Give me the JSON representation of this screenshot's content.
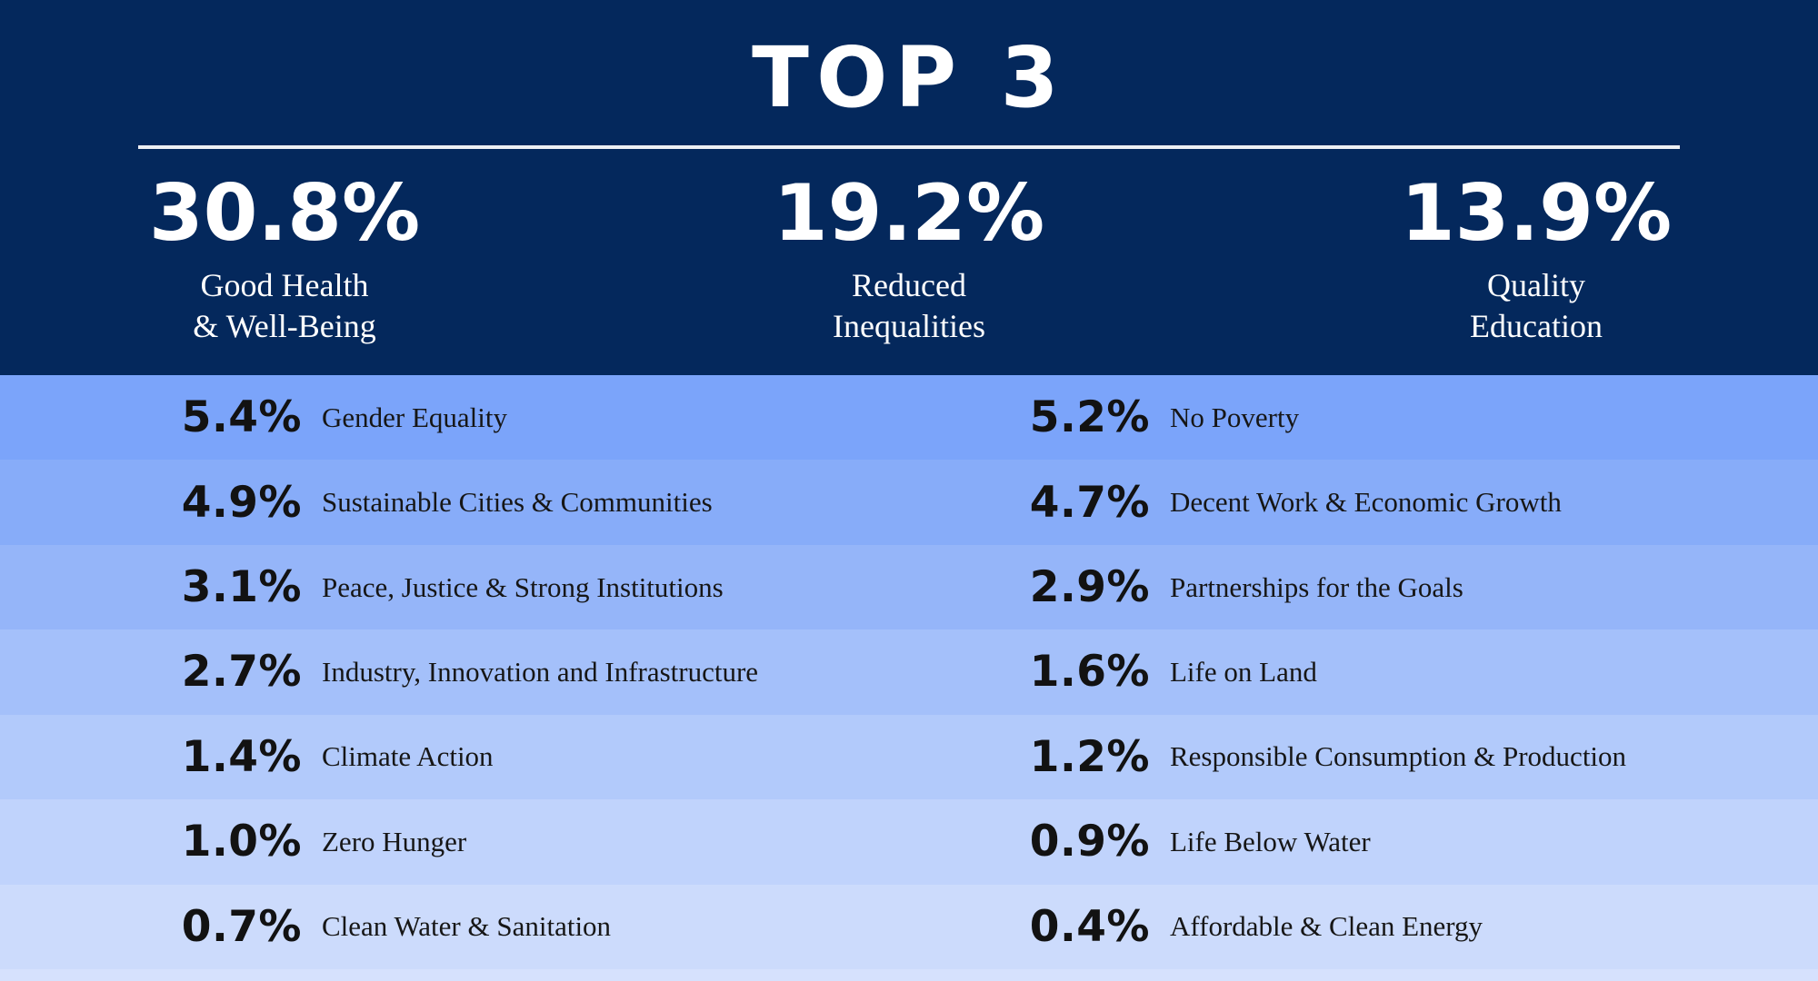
{
  "title": "TOP 3",
  "palette": {
    "navy": "#04285c",
    "white": "#ffffff",
    "row_text": "#121212",
    "row_backgrounds": [
      "#7ba4fa",
      "#87acf9",
      "#95b5f9",
      "#a4c0fa",
      "#b2cafb",
      "#c0d3fc",
      "#ccdbfc"
    ],
    "footer_band": "#d6e1fd"
  },
  "top3": [
    {
      "pct": "30.8%",
      "label_line1": "Good Health",
      "label_line2": "& Well-Being"
    },
    {
      "pct": "19.2%",
      "label_line1": "Reduced",
      "label_line2": "Inequalities"
    },
    {
      "pct": "13.9%",
      "label_line1": "Quality",
      "label_line2": "Education"
    }
  ],
  "rows": [
    {
      "left": {
        "pct": "5.4%",
        "label": "Gender Equality"
      },
      "right": {
        "pct": "5.2%",
        "label": "No Poverty"
      }
    },
    {
      "left": {
        "pct": "4.9%",
        "label": "Sustainable Cities & Communities"
      },
      "right": {
        "pct": "4.7%",
        "label": "Decent Work & Economic Growth"
      }
    },
    {
      "left": {
        "pct": "3.1%",
        "label": "Peace, Justice & Strong Institutions"
      },
      "right": {
        "pct": "2.9%",
        "label": "Partnerships for the Goals"
      }
    },
    {
      "left": {
        "pct": "2.7%",
        "label": "Industry, Innovation and Infrastructure"
      },
      "right": {
        "pct": "1.6%",
        "label": "Life on Land"
      }
    },
    {
      "left": {
        "pct": "1.4%",
        "label": "Climate Action"
      },
      "right": {
        "pct": "1.2%",
        "label": "Responsible Consumption & Production"
      }
    },
    {
      "left": {
        "pct": "1.0%",
        "label": "Zero Hunger"
      },
      "right": {
        "pct": "0.9%",
        "label": "Life Below Water"
      }
    },
    {
      "left": {
        "pct": "0.7%",
        "label": "Clean Water & Sanitation"
      },
      "right": {
        "pct": "0.4%",
        "label": "Affordable & Clean Energy"
      }
    }
  ],
  "chart_data": {
    "type": "table",
    "title": "TOP 3",
    "unit": "%",
    "categories": [
      "Good Health & Well-Being",
      "Reduced Inequalities",
      "Quality Education",
      "Gender Equality",
      "No Poverty",
      "Sustainable Cities & Communities",
      "Decent Work & Economic Growth",
      "Peace, Justice & Strong Institutions",
      "Partnerships for the Goals",
      "Industry, Innovation and Infrastructure",
      "Life on Land",
      "Climate Action",
      "Responsible Consumption & Production",
      "Zero Hunger",
      "Life Below Water",
      "Clean Water & Sanitation",
      "Affordable & Clean Energy"
    ],
    "values": [
      30.8,
      19.2,
      13.9,
      5.4,
      5.2,
      4.9,
      4.7,
      3.1,
      2.9,
      2.7,
      1.6,
      1.4,
      1.2,
      1.0,
      0.9,
      0.7,
      0.4
    ],
    "layout": "top-3 callouts on navy header; remaining 14 goals in two-column ranked list with row shading fading light blue toward bottom"
  }
}
